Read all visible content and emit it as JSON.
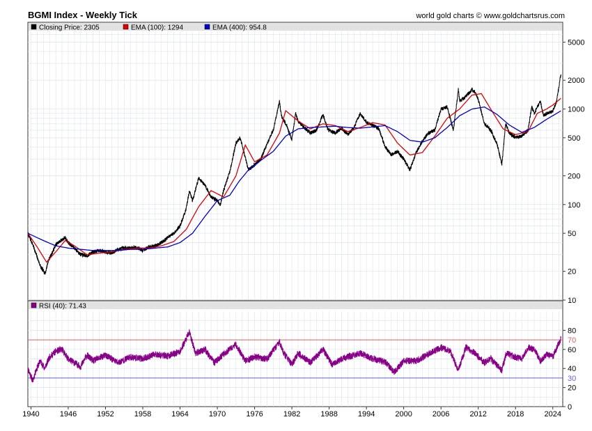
{
  "header": {
    "title": "BGMI Index - Weekly Tick",
    "credit": "world gold charts © www.goldchartsrus.com"
  },
  "colors": {
    "close": "#000000",
    "ema100": "#e00000",
    "ema400": "#0000cc",
    "rsi": "#880088",
    "overbought": "#e06060",
    "oversold": "#6060e0",
    "grid": "#dde4ee",
    "legend_bg": "#e2e2e2"
  },
  "chart_data": [
    {
      "type": "line",
      "title": "BGMI Index - Weekly Tick",
      "y_scale": "log",
      "ylim": [
        10,
        6500
      ],
      "y_ticks": [
        10,
        20,
        50,
        100,
        200,
        500,
        1000,
        2000,
        5000
      ],
      "y_tick_labels": [
        "10",
        "20",
        "50",
        "100",
        "200",
        "500",
        "1000",
        "2000",
        "5000"
      ],
      "xlim": [
        1939.5,
        2025.6
      ],
      "x_ticks": [
        1940,
        1946,
        1952,
        1958,
        1964,
        1970,
        1976,
        1982,
        1988,
        1994,
        2000,
        2006,
        2012,
        2018,
        2024
      ],
      "x_tick_labels": [
        "1940",
        "1946",
        "1952",
        "1958",
        "1964",
        "1970",
        "1976",
        "1982",
        "1988",
        "1994",
        "2000",
        "2006",
        "2012",
        "2018",
        "2024"
      ],
      "legend": [
        {
          "label": "Closing Price: 2305",
          "color": "#000000"
        },
        {
          "label": "EMA (100): 1294",
          "color": "#e00000"
        },
        {
          "label": "EMA (400): 954.8",
          "color": "#0000cc"
        }
      ],
      "series": [
        {
          "name": "Closing Price",
          "color": "#000000",
          "x": [
            1939.5,
            1940.3,
            1941,
            1941.6,
            1942.3,
            1942.8,
            1943.3,
            1944,
            1944.8,
            1945.5,
            1946,
            1947,
            1948,
            1949,
            1950,
            1951,
            1952,
            1953,
            1954,
            1955,
            1956,
            1957,
            1958,
            1959,
            1960,
            1961,
            1962,
            1963,
            1964,
            1965,
            1965.5,
            1966,
            1967,
            1968,
            1969,
            1970,
            1970.5,
            1971,
            1972,
            1973,
            1973.6,
            1974,
            1975,
            1976,
            1977,
            1978,
            1979,
            1980,
            1980.3,
            1981,
            1982,
            1982.6,
            1983,
            1984,
            1985,
            1986,
            1987,
            1987.8,
            1988,
            1989,
            1990,
            1991,
            1992,
            1993,
            1994,
            1995,
            1996,
            1997,
            1998,
            1999,
            2000,
            2001,
            2002,
            2003,
            2004,
            2005,
            2006,
            2007,
            2008,
            2008.8,
            2009,
            2010,
            2011,
            2011.5,
            2012,
            2013,
            2014,
            2015,
            2015.8,
            2016.4,
            2017,
            2018,
            2019,
            2020,
            2020.6,
            2021,
            2022,
            2022.5,
            2023,
            2024,
            2024.6,
            2025.3
          ],
          "values": [
            50,
            38,
            28,
            22,
            19,
            26,
            30,
            38,
            42,
            45,
            40,
            35,
            30,
            29,
            32,
            33,
            32,
            31,
            34,
            35,
            35,
            36,
            33,
            36,
            37,
            40,
            45,
            50,
            60,
            90,
            140,
            110,
            190,
            160,
            120,
            110,
            100,
            140,
            220,
            440,
            500,
            420,
            230,
            260,
            300,
            430,
            600,
            1200,
            850,
            700,
            480,
            900,
            750,
            640,
            560,
            600,
            880,
            610,
            600,
            560,
            630,
            540,
            640,
            900,
            720,
            680,
            620,
            400,
            330,
            360,
            300,
            230,
            350,
            460,
            560,
            600,
            1000,
            1050,
            600,
            1600,
            1200,
            1350,
            1600,
            1500,
            1250,
            700,
            600,
            440,
            260,
            700,
            560,
            500,
            520,
            600,
            1050,
            900,
            1200,
            850,
            900,
            950,
            1200,
            2305
          ]
        },
        {
          "name": "EMA (100)",
          "color": "#e00000",
          "x": [
            1939.5,
            1941,
            1942.5,
            1944,
            1945.5,
            1947,
            1949,
            1951,
            1953,
            1955,
            1957,
            1959,
            1961,
            1963,
            1965,
            1967,
            1969,
            1971,
            1973,
            1974.5,
            1976,
            1978,
            1980,
            1981,
            1983,
            1985,
            1987,
            1989,
            1991,
            1993,
            1995,
            1997,
            1999,
            2001,
            2003,
            2005,
            2007,
            2009,
            2011,
            2012.5,
            2014,
            2016,
            2018,
            2020,
            2021.5,
            2023,
            2024,
            2025.3
          ],
          "values": [
            50,
            36,
            25,
            32,
            42,
            37,
            30,
            31,
            32,
            34,
            35,
            35,
            37,
            41,
            55,
            95,
            140,
            120,
            200,
            420,
            280,
            330,
            560,
            960,
            750,
            620,
            700,
            670,
            580,
            640,
            720,
            680,
            440,
            330,
            350,
            520,
            800,
            1000,
            1400,
            1450,
            1000,
            620,
            540,
            580,
            900,
            1000,
            1100,
            1294
          ]
        },
        {
          "name": "EMA (400)",
          "color": "#0000cc",
          "x": [
            1939.5,
            1942,
            1944,
            1946,
            1948,
            1950,
            1952,
            1954,
            1956,
            1958,
            1960,
            1962,
            1964,
            1966,
            1968,
            1970,
            1972,
            1973.5,
            1975,
            1977,
            1979,
            1981,
            1983,
            1985,
            1987,
            1989,
            1991,
            1993,
            1995,
            1997,
            1999,
            2001,
            2003,
            2005,
            2007,
            2009,
            2011,
            2013,
            2015,
            2017,
            2019,
            2021,
            2023,
            2025.3
          ],
          "values": [
            50,
            42,
            37,
            35,
            34,
            33,
            33,
            33,
            34,
            34,
            35,
            36,
            40,
            50,
            75,
            110,
            125,
            175,
            230,
            290,
            360,
            520,
            620,
            640,
            650,
            660,
            640,
            630,
            650,
            670,
            580,
            470,
            450,
            500,
            640,
            850,
            1000,
            1050,
            880,
            680,
            570,
            640,
            780,
            954.8
          ]
        }
      ]
    },
    {
      "type": "line",
      "title": "RSI (40)",
      "ylim": [
        0,
        100
      ],
      "y_ticks": [
        0,
        20,
        40,
        60,
        80
      ],
      "y_tick_labels": [
        "0",
        "20",
        "40",
        "60",
        "80"
      ],
      "levels": [
        {
          "value": 70,
          "label": "70",
          "color": "#e06060"
        },
        {
          "value": 30,
          "label": "30",
          "color": "#6060e0"
        }
      ],
      "legend": [
        {
          "label": "RSI (40): 71.43",
          "color": "#880088"
        }
      ],
      "series": [
        {
          "name": "RSI (40)",
          "color": "#880088",
          "x": [
            1939.5,
            1940.3,
            1940.8,
            1941.5,
            1942.2,
            1943,
            1944,
            1945,
            1946,
            1947,
            1948,
            1949,
            1950,
            1952,
            1954,
            1956,
            1958,
            1960,
            1962,
            1964,
            1965.5,
            1966.5,
            1968,
            1969.5,
            1971,
            1973,
            1974.5,
            1976,
            1978,
            1980,
            1980.7,
            1982,
            1983,
            1985,
            1987,
            1988.5,
            1990,
            1993,
            1995,
            1997,
            1998.5,
            2000,
            2002,
            2004,
            2006,
            2007.5,
            2008.8,
            2010,
            2011.5,
            2013,
            2014,
            2015.8,
            2016.5,
            2018,
            2019,
            2020,
            2021,
            2022,
            2023,
            2024,
            2025.3
          ],
          "values": [
            40,
            27,
            38,
            48,
            40,
            52,
            58,
            60,
            50,
            46,
            42,
            54,
            48,
            54,
            46,
            52,
            50,
            55,
            53,
            58,
            78,
            56,
            60,
            46,
            55,
            65,
            48,
            52,
            50,
            68,
            56,
            44,
            56,
            46,
            60,
            44,
            50,
            56,
            50,
            47,
            36,
            48,
            48,
            55,
            62,
            58,
            38,
            62,
            56,
            46,
            50,
            38,
            56,
            52,
            50,
            62,
            60,
            48,
            55,
            52,
            71.43
          ]
        }
      ]
    }
  ]
}
